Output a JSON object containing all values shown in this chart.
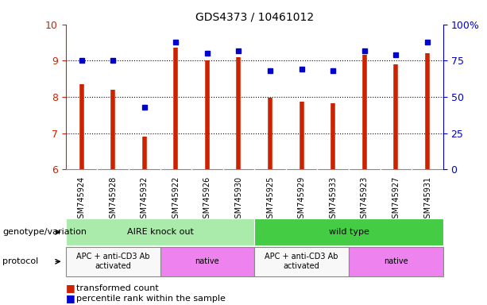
{
  "title": "GDS4373 / 10461012",
  "samples": [
    "GSM745924",
    "GSM745928",
    "GSM745932",
    "GSM745922",
    "GSM745926",
    "GSM745930",
    "GSM745925",
    "GSM745929",
    "GSM745933",
    "GSM745923",
    "GSM745927",
    "GSM745931"
  ],
  "red_values": [
    8.35,
    8.2,
    6.9,
    9.35,
    9.0,
    9.1,
    7.97,
    7.87,
    7.82,
    9.15,
    8.9,
    9.2
  ],
  "blue_values": [
    75,
    75,
    43,
    88,
    80,
    82,
    68,
    69,
    68,
    82,
    79,
    88
  ],
  "ylim_left": [
    6,
    10
  ],
  "ylim_right": [
    0,
    100
  ],
  "yticks_left": [
    6,
    7,
    8,
    9,
    10
  ],
  "yticks_right": [
    0,
    25,
    50,
    75,
    100
  ],
  "ytick_labels_right": [
    "0",
    "25",
    "50",
    "75",
    "100%"
  ],
  "genotype_groups": [
    {
      "label": "AIRE knock out",
      "start": 0,
      "end": 6,
      "color": "#AAEAAA"
    },
    {
      "label": "wild type",
      "start": 6,
      "end": 12,
      "color": "#44CC44"
    }
  ],
  "protocol_groups": [
    {
      "label": "APC + anti-CD3 Ab\nactivated",
      "start": 0,
      "end": 3,
      "color": "#F8F8F8"
    },
    {
      "label": "native",
      "start": 3,
      "end": 6,
      "color": "#EE82EE"
    },
    {
      "label": "APC + anti-CD3 Ab\nactivated",
      "start": 6,
      "end": 9,
      "color": "#F8F8F8"
    },
    {
      "label": "native",
      "start": 9,
      "end": 12,
      "color": "#EE82EE"
    }
  ],
  "bar_color": "#CC2200",
  "dot_color": "#0000CC",
  "bg_color": "#FFFFFF",
  "label_transformed": "transformed count",
  "label_percentile": "percentile rank within the sample",
  "genotype_label": "genotype/variation",
  "protocol_label": "protocol",
  "tick_bg_color": "#D8D8D8"
}
